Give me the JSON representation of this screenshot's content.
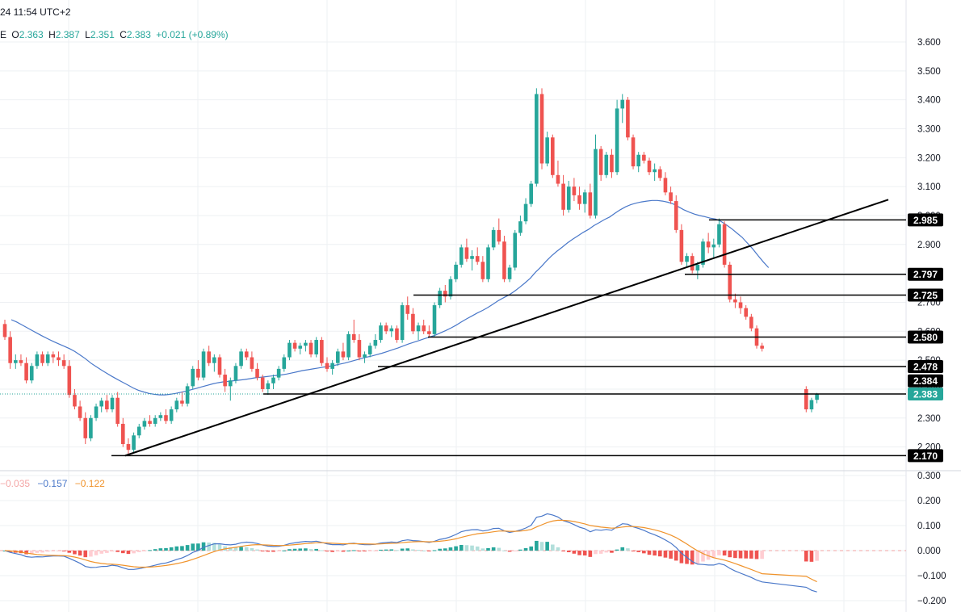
{
  "header": {
    "timestamp": "24 11:54 UTC+2",
    "ohlc_prefix": "E",
    "open_label": "O",
    "open": "2.363",
    "high_label": "H",
    "high": "2.387",
    "low_label": "L",
    "low": "2.351",
    "close_label": "C",
    "close": "2.383",
    "change": "+0.021",
    "change_pct": "(+0.89%)",
    "macd_hist": "−0.035",
    "macd_line": "−0.157",
    "macd_signal": "−0.122"
  },
  "colors": {
    "up": "#26a69a",
    "down": "#ef5350",
    "ma": "#4a78c9",
    "macd": "#4a78c9",
    "signal": "#f0932b",
    "hist_up": "#26a69a",
    "hist_up_light": "#b2dfdb",
    "hist_down": "#ef5350",
    "hist_down_light": "#ffcdd2",
    "level_line": "#000000",
    "current_price_tag": "#26a69a"
  },
  "chart_data": [
    {
      "type": "candlestick",
      "y_ticks": [
        "3.600",
        "3.500",
        "3.400",
        "3.300",
        "3.200",
        "3.100",
        "3.000",
        "2.900",
        "2.800",
        "2.700",
        "2.600",
        "2.500",
        "2.400",
        "2.300",
        "2.200"
      ],
      "ylim": [
        2.15,
        3.65
      ],
      "price_tags": [
        "2.985",
        "2.797",
        "2.725",
        "2.580",
        "2.478",
        "2.384",
        "2.383",
        "2.170"
      ],
      "current_price": "2.383",
      "ma_color_name": "blue moving average",
      "key_points": {
        "start_price": 2.64,
        "swing_low": 2.17,
        "first_rally_high": 2.55,
        "pullback_low": 2.4,
        "second_leg_high": 2.63,
        "peak_high": 3.44,
        "second_peak_high": 3.42,
        "breakdown_low": 2.54,
        "last_close": 2.383
      },
      "candles": [
        [
          2.625,
          2.64,
          2.57,
          2.58
        ],
        [
          2.58,
          2.6,
          2.47,
          2.49
        ],
        [
          2.49,
          2.52,
          2.47,
          2.5
        ],
        [
          2.5,
          2.52,
          2.48,
          2.49
        ],
        [
          2.49,
          2.51,
          2.42,
          2.43
        ],
        [
          2.43,
          2.49,
          2.42,
          2.48
        ],
        [
          2.48,
          2.53,
          2.47,
          2.52
        ],
        [
          2.52,
          2.53,
          2.48,
          2.49
        ],
        [
          2.49,
          2.53,
          2.48,
          2.52
        ],
        [
          2.52,
          2.53,
          2.49,
          2.51
        ],
        [
          2.51,
          2.53,
          2.48,
          2.5
        ],
        [
          2.5,
          2.52,
          2.47,
          2.48
        ],
        [
          2.48,
          2.5,
          2.37,
          2.38
        ],
        [
          2.38,
          2.4,
          2.33,
          2.34
        ],
        [
          2.34,
          2.36,
          2.29,
          2.3
        ],
        [
          2.3,
          2.32,
          2.21,
          2.23
        ],
        [
          2.23,
          2.31,
          2.22,
          2.3
        ],
        [
          2.3,
          2.35,
          2.29,
          2.34
        ],
        [
          2.34,
          2.37,
          2.32,
          2.36
        ],
        [
          2.36,
          2.38,
          2.32,
          2.33
        ],
        [
          2.33,
          2.38,
          2.32,
          2.37
        ],
        [
          2.37,
          2.39,
          2.27,
          2.28
        ],
        [
          2.28,
          2.3,
          2.2,
          2.21
        ],
        [
          2.21,
          2.23,
          2.17,
          2.19
        ],
        [
          2.19,
          2.25,
          2.18,
          2.24
        ],
        [
          2.24,
          2.28,
          2.23,
          2.27
        ],
        [
          2.27,
          2.3,
          2.26,
          2.29
        ],
        [
          2.29,
          2.31,
          2.27,
          2.28
        ],
        [
          2.28,
          2.31,
          2.27,
          2.3
        ],
        [
          2.3,
          2.32,
          2.29,
          2.31
        ],
        [
          2.31,
          2.33,
          2.28,
          2.29
        ],
        [
          2.29,
          2.34,
          2.28,
          2.33
        ],
        [
          2.33,
          2.37,
          2.32,
          2.36
        ],
        [
          2.36,
          2.39,
          2.34,
          2.35
        ],
        [
          2.35,
          2.42,
          2.34,
          2.41
        ],
        [
          2.41,
          2.48,
          2.4,
          2.47
        ],
        [
          2.47,
          2.5,
          2.43,
          2.44
        ],
        [
          2.44,
          2.54,
          2.43,
          2.53
        ],
        [
          2.53,
          2.55,
          2.48,
          2.49
        ],
        [
          2.49,
          2.52,
          2.46,
          2.51
        ],
        [
          2.51,
          2.52,
          2.44,
          2.45
        ],
        [
          2.45,
          2.47,
          2.39,
          2.41
        ],
        [
          2.41,
          2.44,
          2.36,
          2.43
        ],
        [
          2.43,
          2.49,
          2.42,
          2.48
        ],
        [
          2.48,
          2.54,
          2.47,
          2.53
        ],
        [
          2.53,
          2.54,
          2.5,
          2.51
        ],
        [
          2.51,
          2.53,
          2.46,
          2.47
        ],
        [
          2.47,
          2.49,
          2.43,
          2.44
        ],
        [
          2.44,
          2.45,
          2.39,
          2.4
        ],
        [
          2.4,
          2.43,
          2.38,
          2.42
        ],
        [
          2.42,
          2.45,
          2.4,
          2.44
        ],
        [
          2.44,
          2.48,
          2.43,
          2.47
        ],
        [
          2.47,
          2.52,
          2.46,
          2.51
        ],
        [
          2.51,
          2.57,
          2.5,
          2.56
        ],
        [
          2.56,
          2.57,
          2.53,
          2.54
        ],
        [
          2.54,
          2.56,
          2.52,
          2.55
        ],
        [
          2.55,
          2.57,
          2.53,
          2.56
        ],
        [
          2.56,
          2.57,
          2.51,
          2.52
        ],
        [
          2.52,
          2.58,
          2.51,
          2.57
        ],
        [
          2.57,
          2.58,
          2.48,
          2.49
        ],
        [
          2.49,
          2.51,
          2.46,
          2.47
        ],
        [
          2.47,
          2.5,
          2.45,
          2.49
        ],
        [
          2.49,
          2.54,
          2.48,
          2.53
        ],
        [
          2.53,
          2.56,
          2.5,
          2.51
        ],
        [
          2.51,
          2.6,
          2.5,
          2.59
        ],
        [
          2.59,
          2.64,
          2.56,
          2.57
        ],
        [
          2.57,
          2.59,
          2.5,
          2.51
        ],
        [
          2.51,
          2.53,
          2.49,
          2.52
        ],
        [
          2.52,
          2.56,
          2.51,
          2.55
        ],
        [
          2.55,
          2.59,
          2.54,
          2.57
        ],
        [
          2.57,
          2.63,
          2.56,
          2.62
        ],
        [
          2.62,
          2.63,
          2.59,
          2.6
        ],
        [
          2.6,
          2.62,
          2.58,
          2.61
        ],
        [
          2.61,
          2.62,
          2.56,
          2.57
        ],
        [
          2.57,
          2.7,
          2.56,
          2.69
        ],
        [
          2.69,
          2.72,
          2.64,
          2.66
        ],
        [
          2.66,
          2.68,
          2.59,
          2.6
        ],
        [
          2.6,
          2.63,
          2.57,
          2.62
        ],
        [
          2.62,
          2.64,
          2.59,
          2.6
        ],
        [
          2.6,
          2.62,
          2.58,
          2.59
        ],
        [
          2.59,
          2.7,
          2.58,
          2.69
        ],
        [
          2.69,
          2.75,
          2.68,
          2.74
        ],
        [
          2.74,
          2.76,
          2.7,
          2.72
        ],
        [
          2.72,
          2.79,
          2.71,
          2.78
        ],
        [
          2.78,
          2.84,
          2.77,
          2.83
        ],
        [
          2.83,
          2.9,
          2.82,
          2.89
        ],
        [
          2.89,
          2.92,
          2.84,
          2.85
        ],
        [
          2.85,
          2.88,
          2.81,
          2.86
        ],
        [
          2.86,
          2.89,
          2.83,
          2.84
        ],
        [
          2.84,
          2.86,
          2.77,
          2.78
        ],
        [
          2.78,
          2.9,
          2.77,
          2.89
        ],
        [
          2.89,
          2.96,
          2.88,
          2.95
        ],
        [
          2.95,
          2.99,
          2.9,
          2.91
        ],
        [
          2.91,
          2.93,
          2.77,
          2.78
        ],
        [
          2.78,
          2.83,
          2.77,
          2.82
        ],
        [
          2.82,
          2.95,
          2.81,
          2.94
        ],
        [
          2.94,
          3.0,
          2.93,
          2.98
        ],
        [
          2.98,
          3.06,
          2.97,
          3.04
        ],
        [
          3.04,
          3.12,
          3.03,
          3.11
        ],
        [
          3.11,
          3.44,
          3.1,
          3.42
        ],
        [
          3.42,
          3.44,
          3.16,
          3.18
        ],
        [
          3.18,
          3.29,
          3.17,
          3.27
        ],
        [
          3.27,
          3.28,
          3.13,
          3.14
        ],
        [
          3.14,
          3.19,
          3.1,
          3.11
        ],
        [
          3.11,
          3.14,
          3.0,
          3.02
        ],
        [
          3.02,
          3.12,
          3.01,
          3.1
        ],
        [
          3.1,
          3.13,
          3.05,
          3.07
        ],
        [
          3.07,
          3.1,
          3.02,
          3.04
        ],
        [
          3.04,
          3.09,
          3.01,
          3.08
        ],
        [
          3.08,
          3.11,
          2.99,
          3.0
        ],
        [
          3.0,
          3.28,
          2.99,
          3.23
        ],
        [
          3.23,
          3.24,
          3.12,
          3.14
        ],
        [
          3.14,
          3.22,
          3.13,
          3.21
        ],
        [
          3.21,
          3.23,
          3.13,
          3.15
        ],
        [
          3.15,
          3.4,
          3.14,
          3.37
        ],
        [
          3.37,
          3.42,
          3.32,
          3.4
        ],
        [
          3.4,
          3.41,
          3.26,
          3.27
        ],
        [
          3.27,
          3.28,
          3.16,
          3.17
        ],
        [
          3.17,
          3.22,
          3.15,
          3.21
        ],
        [
          3.21,
          3.22,
          3.18,
          3.19
        ],
        [
          3.19,
          3.2,
          3.14,
          3.15
        ],
        [
          3.15,
          3.18,
          3.12,
          3.16
        ],
        [
          3.16,
          3.17,
          3.12,
          3.13
        ],
        [
          3.13,
          3.15,
          3.07,
          3.08
        ],
        [
          3.08,
          3.1,
          3.04,
          3.05
        ],
        [
          3.05,
          3.07,
          2.94,
          2.95
        ],
        [
          2.95,
          2.97,
          2.83,
          2.84
        ],
        [
          2.84,
          2.87,
          2.82,
          2.86
        ],
        [
          2.86,
          2.87,
          2.8,
          2.81
        ],
        [
          2.81,
          2.84,
          2.78,
          2.83
        ],
        [
          2.83,
          2.92,
          2.82,
          2.91
        ],
        [
          2.91,
          2.94,
          2.87,
          2.89
        ],
        [
          2.89,
          2.92,
          2.85,
          2.9
        ],
        [
          2.9,
          2.99,
          2.89,
          2.97
        ],
        [
          2.97,
          2.98,
          2.82,
          2.83
        ],
        [
          2.83,
          2.84,
          2.7,
          2.71
        ],
        [
          2.71,
          2.73,
          2.68,
          2.7
        ],
        [
          2.7,
          2.72,
          2.66,
          2.68
        ],
        [
          2.68,
          2.69,
          2.64,
          2.65
        ],
        [
          2.65,
          2.66,
          2.6,
          2.61
        ],
        [
          2.61,
          2.62,
          2.54,
          2.55
        ],
        [
          2.55,
          2.56,
          2.53,
          2.54
        ],
        [
          2.4,
          2.41,
          2.32,
          2.33
        ],
        [
          2.33,
          2.37,
          2.32,
          2.362
        ],
        [
          2.363,
          2.387,
          2.351,
          2.383
        ]
      ],
      "moving_average": [
        2.64,
        2.632,
        2.622,
        2.612,
        2.602,
        2.592,
        2.582,
        2.573,
        2.564,
        2.556,
        2.548,
        2.54,
        2.53,
        2.518,
        2.505,
        2.49,
        2.478,
        2.466,
        2.455,
        2.444,
        2.434,
        2.424,
        2.414,
        2.404,
        2.396,
        2.39,
        2.385,
        2.382,
        2.38,
        2.38,
        2.382,
        2.385,
        2.389,
        2.393,
        2.398,
        2.403,
        2.408,
        2.413,
        2.418,
        2.422,
        2.425,
        2.427,
        2.429,
        2.431,
        2.433,
        2.436,
        2.439,
        2.441,
        2.443,
        2.445,
        2.447,
        2.449,
        2.452,
        2.456,
        2.46,
        2.464,
        2.467,
        2.47,
        2.473,
        2.476,
        2.479,
        2.482,
        2.486,
        2.49,
        2.495,
        2.5,
        2.505,
        2.51,
        2.514,
        2.519,
        2.524,
        2.53,
        2.536,
        2.542,
        2.549,
        2.556,
        2.562,
        2.568,
        2.574,
        2.58,
        2.586,
        2.594,
        2.602,
        2.611,
        2.621,
        2.632,
        2.643,
        2.653,
        2.663,
        2.672,
        2.682,
        2.694,
        2.706,
        2.716,
        2.726,
        2.738,
        2.752,
        2.767,
        2.783,
        2.804,
        2.822,
        2.842,
        2.86,
        2.876,
        2.89,
        2.905,
        2.918,
        2.93,
        2.942,
        2.952,
        2.965,
        2.975,
        2.986,
        2.995,
        3.008,
        3.02,
        3.03,
        3.038,
        3.043,
        3.047,
        3.05,
        3.052,
        3.052,
        3.05,
        3.046,
        3.04,
        3.03,
        3.02,
        3.012,
        3.005,
        3.0,
        2.996,
        2.991,
        2.988,
        2.98,
        2.968,
        2.955,
        2.94,
        2.925,
        2.905,
        2.885,
        2.862,
        2.84,
        2.82
      ]
    },
    {
      "type": "macd",
      "y_ticks": [
        "0.300",
        "0.200",
        "0.100",
        "0.000",
        "−0.100",
        "−0.200"
      ],
      "ylim": [
        -0.22,
        0.32
      ],
      "legend": [
        "−0.035",
        "−0.157",
        "−0.122"
      ],
      "key_points": {
        "macd_peak": 0.13,
        "macd_last": -0.157,
        "signal_last": -0.122,
        "hist_last": -0.035
      }
    }
  ]
}
